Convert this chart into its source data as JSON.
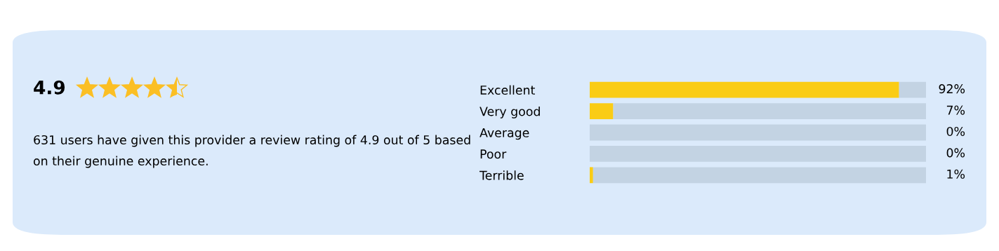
{
  "chart_data": {
    "type": "bar",
    "orientation": "horizontal",
    "stacked": true,
    "title": "4.9",
    "annotations": [
      "631 users have given this provider a review rating of 4.9 out of 5 based on their genuine experience."
    ],
    "categories": [
      "Excellent",
      "Very good",
      "Average",
      "Poor",
      "Terrible"
    ],
    "series": [
      {
        "color": "#facc15",
        "values": [
          92,
          7,
          0,
          0,
          1
        ],
        "value_labels": [
          "92%",
          "7%",
          "0%",
          "0%",
          "1%"
        ]
      },
      {
        "color": "#c3d3e3",
        "values": [
          8,
          93,
          100,
          100,
          99
        ]
      }
    ],
    "xlim": [
      0,
      100
    ],
    "tick_labels": "y",
    "grid": false,
    "legend": false
  }
}
